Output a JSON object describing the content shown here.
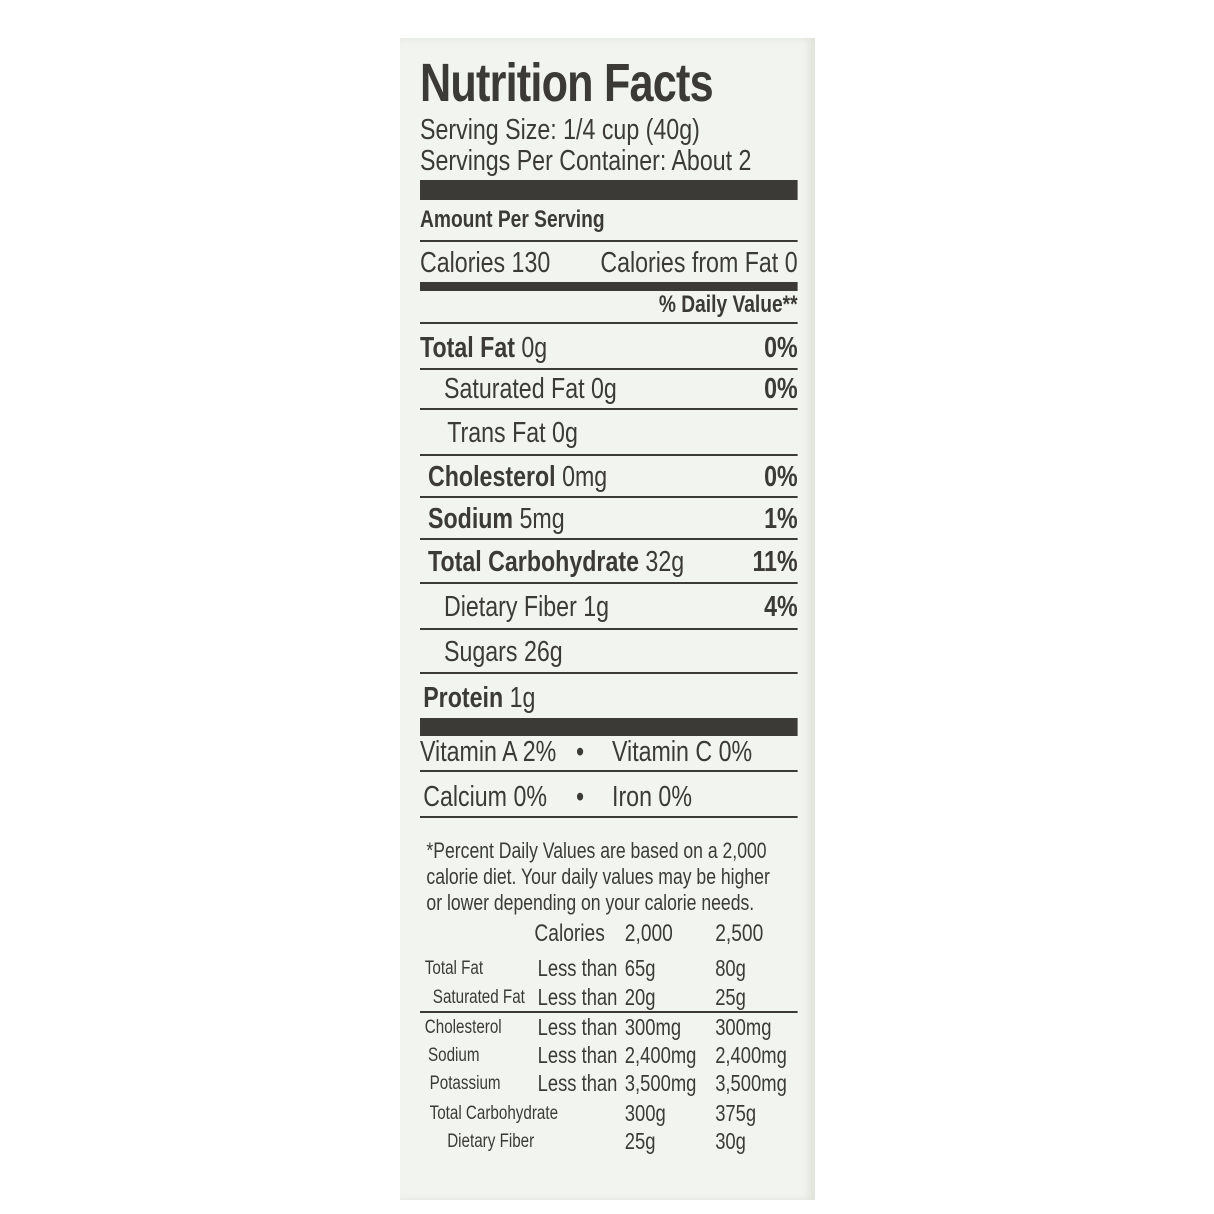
{
  "title": "Nutrition Facts",
  "serving_size": "Serving Size: 1/4 cup (40g)",
  "servings_per_container": "Servings Per Container: About 2",
  "amount_per_serving": "Amount Per Serving",
  "calories": "Calories 130",
  "calories_from_fat": "Calories from Fat 0",
  "daily_value_header": "% Daily Value**",
  "nutrients": [
    {
      "name": "Total Fat",
      "amount": "0g",
      "dv": "0%"
    },
    {
      "name": "Saturated Fat 0g",
      "dv": "0%"
    },
    {
      "name": "Trans Fat 0g"
    },
    {
      "name": "Cholesterol",
      "amount": "0mg",
      "dv": "0%"
    },
    {
      "name": "Sodium",
      "amount": "5mg",
      "dv": "1%"
    },
    {
      "name": "Total Carbohydrate",
      "amount": "32g",
      "dv": "11%"
    },
    {
      "name": "Dietary Fiber 1g",
      "dv": "4%"
    },
    {
      "name": "Sugars 26g"
    },
    {
      "name": "Protein",
      "amount": "1g"
    }
  ],
  "vitamins": [
    [
      "Vitamin A 2%",
      "Vitamin C 0%"
    ],
    [
      "Calcium 0%",
      "Iron 0%"
    ]
  ],
  "footnote": [
    "*Percent Daily Values are based on a 2,000",
    "calorie diet. Your daily values may be higher",
    "or lower depending on your calorie needs."
  ],
  "dv_table": {
    "header": {
      "label": "Calories",
      "columns": [
        "2,000",
        "2,500"
      ]
    },
    "rows": [
      {
        "name": "Total Fat",
        "qualifier": "Less than",
        "values": [
          "65g",
          "80g"
        ]
      },
      {
        "name": "Saturated Fat",
        "qualifier": "Less than",
        "values": [
          "20g",
          "25g"
        ]
      },
      {
        "name": "Cholesterol",
        "qualifier": "Less than",
        "values": [
          "300mg",
          "300mg"
        ]
      },
      {
        "name": "Sodium",
        "qualifier": "Less than",
        "values": [
          "2,400mg",
          "2,400mg"
        ]
      },
      {
        "name": "Potassium",
        "qualifier": "Less than",
        "values": [
          "3,500mg",
          "3,500mg"
        ]
      },
      {
        "name": "Total Carbohydrate",
        "values": [
          "300g",
          "375g"
        ]
      },
      {
        "name": "Dietary Fiber",
        "values": [
          "25g",
          "30g"
        ]
      }
    ]
  }
}
